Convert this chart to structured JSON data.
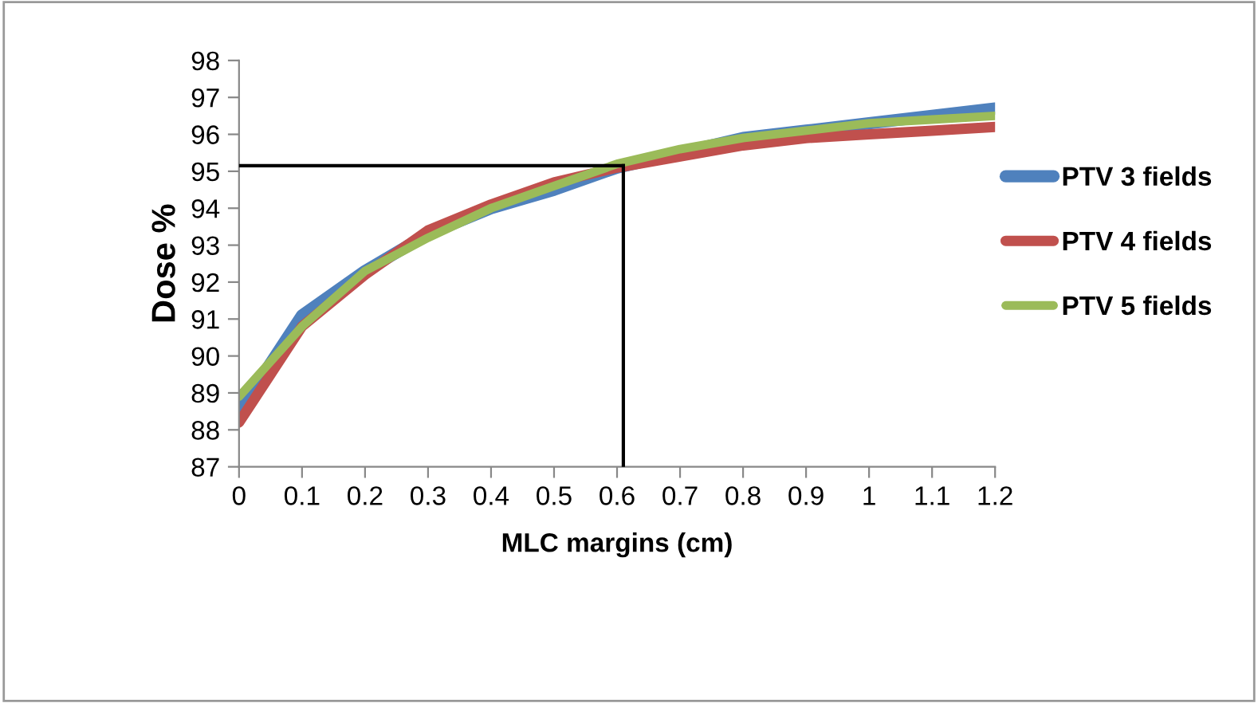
{
  "chart_data": {
    "type": "line",
    "xlabel": "MLC margins (cm)",
    "ylabel": "Dose %",
    "x": [
      0,
      0.1,
      0.2,
      0.3,
      0.4,
      0.5,
      0.6,
      0.7,
      0.8,
      0.9,
      1.0,
      1.1,
      1.2
    ],
    "series": [
      {
        "name": "PTV 3 fields",
        "color": "#4f81bd",
        "values": [
          88.5,
          91.1,
          92.3,
          93.3,
          94.0,
          94.5,
          95.1,
          95.5,
          95.9,
          96.1,
          96.3,
          96.5,
          96.7
        ]
      },
      {
        "name": "PTV 4 fields",
        "color": "#c0504d",
        "values": [
          88.2,
          90.8,
          92.2,
          93.4,
          94.1,
          94.7,
          95.1,
          95.4,
          95.7,
          95.9,
          96.0,
          96.1,
          96.2
        ]
      },
      {
        "name": "PTV 5 fields",
        "color": "#9bbb59",
        "values": [
          88.9,
          90.8,
          92.3,
          93.2,
          94.0,
          94.6,
          95.2,
          95.6,
          95.9,
          96.1,
          96.3,
          96.4,
          96.5
        ]
      }
    ],
    "xlim": [
      0,
      1.2
    ],
    "xticks": [
      0,
      0.1,
      0.2,
      0.3,
      0.4,
      0.5,
      0.6,
      0.7,
      0.8,
      0.9,
      1,
      1.1,
      1.2
    ],
    "ylim": [
      87,
      98
    ],
    "yticks": [
      87,
      88,
      89,
      90,
      91,
      92,
      93,
      94,
      95,
      96,
      97,
      98
    ],
    "ref_lines": [
      {
        "axis": "y",
        "value": 95.15,
        "color": "#000000"
      },
      {
        "axis": "x",
        "value": 0.61,
        "color": "#000000"
      }
    ],
    "legend": "right",
    "grid": false,
    "marker": "none",
    "line_style": "solid"
  }
}
